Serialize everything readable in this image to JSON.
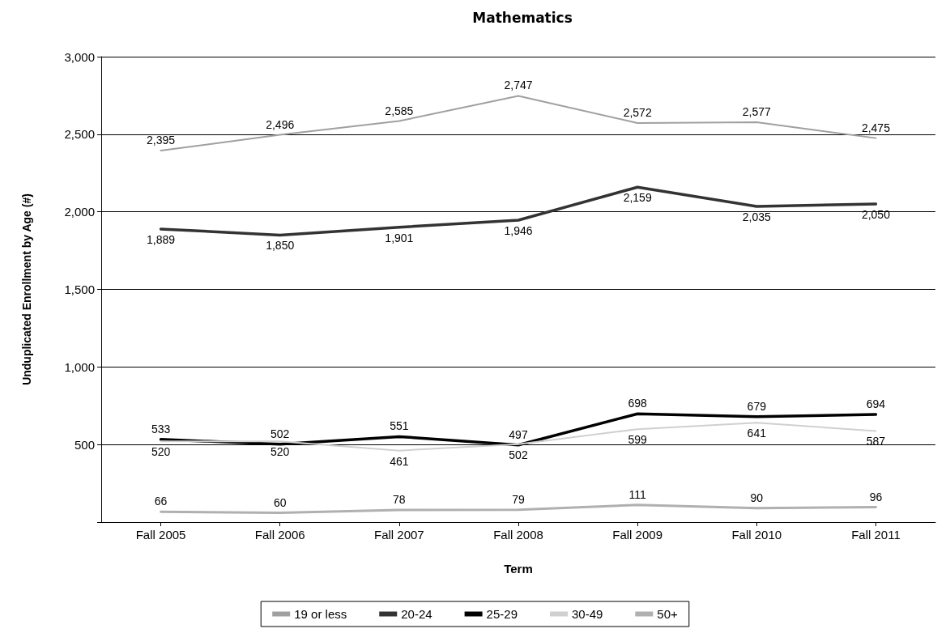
{
  "chart_data": {
    "type": "line",
    "title": "Mathematics",
    "xlabel": "Term",
    "ylabel": "Unduplicated Enrollment by Age (#)",
    "categories": [
      "Fall 2005",
      "Fall 2006",
      "Fall 2007",
      "Fall 2008",
      "Fall 2009",
      "Fall 2010",
      "Fall 2011"
    ],
    "series": [
      {
        "name": "19 or less",
        "color": "#a0a0a0",
        "values": [
          2395,
          2496,
          2585,
          2747,
          2572,
          2577,
          2475
        ],
        "value_labels": [
          "2,395",
          "2,496",
          "2,585",
          "2,747",
          "2,572",
          "2,577",
          "2,475"
        ]
      },
      {
        "name": "20-24",
        "color": "#333333",
        "values": [
          1889,
          1850,
          1901,
          1946,
          2159,
          2035,
          2050
        ],
        "value_labels": [
          "1,889",
          "1,850",
          "1,901",
          "1,946",
          "2,159",
          "2,035",
          "2,050"
        ]
      },
      {
        "name": "25-29",
        "color": "#000000",
        "values": [
          533,
          502,
          551,
          497,
          698,
          679,
          694
        ],
        "value_labels": [
          "533",
          "502",
          "551",
          "497",
          "698",
          "679",
          "694"
        ]
      },
      {
        "name": "30-49",
        "color": "#d0d0d0",
        "values": [
          520,
          520,
          461,
          502,
          599,
          641,
          587
        ],
        "value_labels": [
          "520",
          "520",
          "461",
          "502",
          "599",
          "641",
          "587"
        ]
      },
      {
        "name": "50+",
        "color": "#b0b0b0",
        "values": [
          66,
          60,
          78,
          79,
          111,
          90,
          96
        ],
        "value_labels": [
          "66",
          "60",
          "78",
          "79",
          "111",
          "90",
          "96"
        ]
      }
    ],
    "ylim": [
      0,
      3000
    ],
    "yticks": [
      {
        "value": 0,
        "label": null
      },
      500,
      {
        "value": 1000,
        "label": "1,000"
      },
      {
        "value": 1500,
        "label": "1,500"
      },
      {
        "value": 2000,
        "label": "2,000"
      },
      {
        "value": 2500,
        "label": "2,500"
      },
      {
        "value": 3000,
        "label": "3,000"
      }
    ],
    "grid": "y",
    "legend": "bottom",
    "marker": "none",
    "line_style": "solid"
  }
}
